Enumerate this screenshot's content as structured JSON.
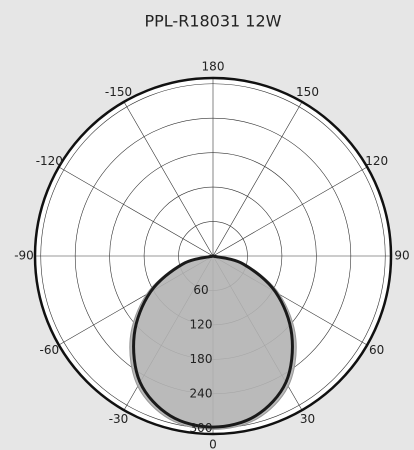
{
  "chart_data": {
    "type": "polar",
    "title": "PPL-R18031 12W",
    "theta": [
      -90,
      -75,
      -60,
      -45,
      -30,
      -15,
      0,
      15,
      30,
      45,
      60,
      75,
      90
    ],
    "series": [
      {
        "color": "#b3b3b3",
        "values": [
          0,
          60,
          134,
          204,
          262,
          294,
          302,
          294,
          262,
          204,
          134,
          60,
          0
        ]
      },
      {
        "color": "#1a1a1a",
        "values": [
          0,
          55,
          126,
          194,
          254,
          288,
          298,
          288,
          254,
          194,
          126,
          55,
          0
        ]
      }
    ],
    "rlim": [
      0,
      310
    ],
    "rticks": [
      60,
      120,
      180,
      240,
      300
    ],
    "thetaticks": [
      180,
      150,
      120,
      90,
      60,
      30,
      0,
      -30,
      -60,
      -90,
      -120,
      -150
    ]
  }
}
